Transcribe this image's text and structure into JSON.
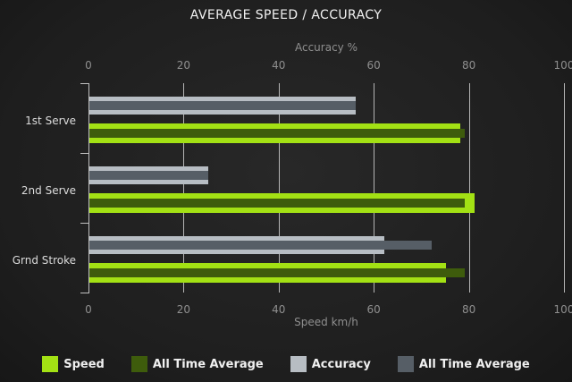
{
  "title": "AVERAGE SPEED / ACCURACY",
  "chart_data": {
    "type": "bar",
    "orientation": "horizontal",
    "categories": [
      "1st Serve",
      "2nd Serve",
      "Grnd Stroke"
    ],
    "series": [
      {
        "name": "Speed",
        "color": "#a3e114",
        "values": [
          78,
          81,
          75
        ]
      },
      {
        "name": "All Time Average",
        "color": "#3e5c0c",
        "values": [
          79,
          79,
          79
        ]
      },
      {
        "name": "Accuracy",
        "color": "#b7bdc3",
        "values": [
          56,
          25,
          62
        ]
      },
      {
        "name": "All Time Average",
        "color": "#565e66",
        "values": [
          56,
          25,
          72
        ]
      }
    ],
    "top_axis": {
      "label": "Accuracy %",
      "ticks": [
        0,
        20,
        40,
        60,
        80,
        100
      ],
      "range": [
        0,
        100
      ]
    },
    "bottom_axis": {
      "label": "Speed km/h",
      "ticks": [
        0,
        20,
        40,
        60,
        80,
        100
      ],
      "range": [
        0,
        100
      ]
    },
    "grid": true,
    "legend_position": "bottom"
  },
  "legend": {
    "items": [
      {
        "label": "Speed",
        "color": "#a3e114"
      },
      {
        "label": "All Time Average",
        "color": "#3e5c0c"
      },
      {
        "label": "Accuracy",
        "color": "#b7bdc3"
      },
      {
        "label": "All Time Average",
        "color": "#565e66"
      }
    ]
  },
  "colors": {
    "background": "#1e1e1e",
    "gridline": "#b5b5b5",
    "axis_text": "#8f8f8f",
    "category_text": "#dcdcdc",
    "title_text": "#f2f2f2"
  }
}
